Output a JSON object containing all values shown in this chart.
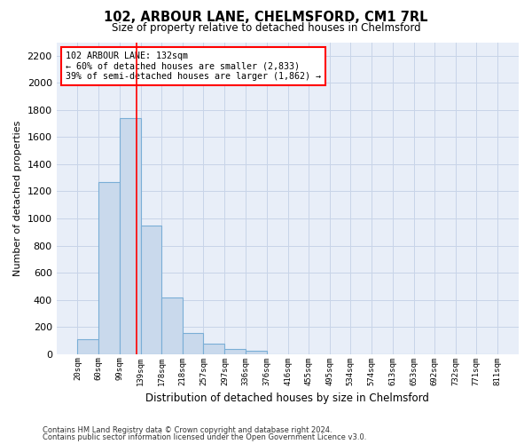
{
  "title": "102, ARBOUR LANE, CHELMSFORD, CM1 7RL",
  "subtitle": "Size of property relative to detached houses in Chelmsford",
  "xlabel": "Distribution of detached houses by size in Chelmsford",
  "ylabel": "Number of detached properties",
  "bar_color": "#c9d9ec",
  "bar_edge_color": "#7aaed6",
  "grid_color": "#c8d4e8",
  "background_color": "#e8eef8",
  "bins": [
    "20sqm",
    "60sqm",
    "99sqm",
    "139sqm",
    "178sqm",
    "218sqm",
    "257sqm",
    "297sqm",
    "336sqm",
    "376sqm",
    "416sqm",
    "455sqm",
    "495sqm",
    "534sqm",
    "574sqm",
    "613sqm",
    "653sqm",
    "692sqm",
    "732sqm",
    "771sqm",
    "811sqm"
  ],
  "values": [
    110,
    1270,
    1740,
    950,
    415,
    155,
    75,
    40,
    25,
    0,
    0,
    0,
    0,
    0,
    0,
    0,
    0,
    0,
    0,
    0
  ],
  "annotation_title": "102 ARBOUR LANE: 132sqm",
  "annotation_line1": "← 60% of detached houses are smaller (2,833)",
  "annotation_line2": "39% of semi-detached houses are larger (1,862) →",
  "red_line_x": 132,
  "ylim": [
    0,
    2300
  ],
  "yticks": [
    0,
    200,
    400,
    600,
    800,
    1000,
    1200,
    1400,
    1600,
    1800,
    2000,
    2200
  ],
  "footnote1": "Contains HM Land Registry data © Crown copyright and database right 2024.",
  "footnote2": "Contains public sector information licensed under the Open Government Licence v3.0."
}
